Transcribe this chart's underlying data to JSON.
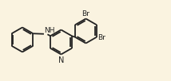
{
  "bg_color": "#faf3e0",
  "bond_color": "#222222",
  "bond_width": 1.3,
  "dbo": 0.018,
  "font_size": 6.5,
  "figsize": [
    2.14,
    1.02
  ],
  "dpi": 100,
  "xlim": [
    0,
    2.14
  ],
  "ylim": [
    0,
    1.02
  ]
}
